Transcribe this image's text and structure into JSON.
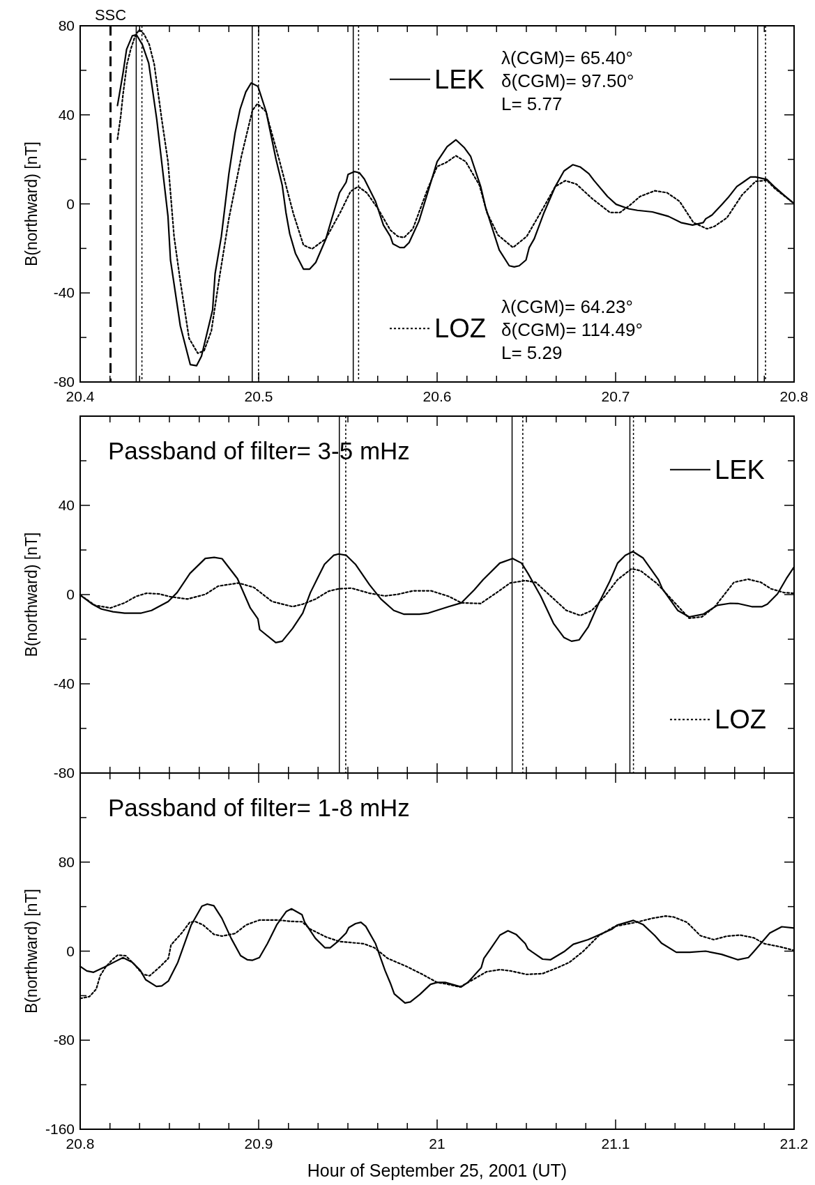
{
  "chart_data": [
    {
      "type": "line",
      "ylabel": "B(northward) [nT]",
      "xlim": [
        20.4,
        20.8
      ],
      "ylim": [
        -80,
        80
      ],
      "legend": "right",
      "xticks": [
        20.4,
        {
          "value": 20.4167,
          "label": null
        },
        {
          "value": 20.4333,
          "label": null
        },
        {
          "value": 20.45,
          "label": null
        },
        {
          "value": 20.4667,
          "label": null
        },
        {
          "value": 20.4833,
          "label": null
        },
        20.5,
        {
          "value": 20.5167,
          "label": null
        },
        {
          "value": 20.5333,
          "label": null
        },
        {
          "value": 20.55,
          "label": null
        },
        {
          "value": 20.5667,
          "label": null
        },
        {
          "value": 20.5833,
          "label": null
        },
        20.6,
        {
          "value": 20.6167,
          "label": null
        },
        {
          "value": 20.6333,
          "label": null
        },
        {
          "value": 20.65,
          "label": null
        },
        {
          "value": 20.6667,
          "label": null
        },
        {
          "value": 20.6833,
          "label": null
        },
        20.7,
        {
          "value": 20.7167,
          "label": null
        },
        {
          "value": 20.7333,
          "label": null
        },
        {
          "value": 20.75,
          "label": null
        },
        {
          "value": 20.7667,
          "label": null
        },
        {
          "value": 20.7833,
          "label": null
        },
        20.8
      ],
      "yticks": [
        -80,
        {
          "value": -60,
          "label": null
        },
        -40,
        {
          "value": -20,
          "label": null
        },
        0,
        {
          "value": 20,
          "label": null
        },
        40,
        {
          "value": 60,
          "label": null
        },
        80
      ],
      "series": [
        {
          "name": "LEK",
          "color": "#000000",
          "line_style": "solid",
          "x": [
            20.4209,
            20.424,
            20.426,
            20.4292,
            20.4315,
            20.4348,
            20.4384,
            20.4429,
            20.4492,
            20.4506,
            20.4561,
            20.4617,
            20.4652,
            20.468,
            20.4742,
            20.4756,
            20.4791,
            20.4833,
            20.4868,
            20.4896,
            20.4928,
            20.4958,
            20.4996,
            20.5042,
            20.5097,
            20.5132,
            20.5153,
            20.5174,
            20.5206,
            20.5251,
            20.5286,
            20.532,
            20.5376,
            20.5401,
            20.5453,
            20.549,
            20.5501,
            20.5536,
            20.5564,
            20.5592,
            20.5655,
            20.5699,
            20.5738,
            20.5752,
            20.5791,
            20.5815,
            20.5843,
            20.5898,
            20.5947,
            20.6,
            20.6056,
            20.6105,
            20.6153,
            20.6188,
            20.6244,
            20.6272,
            20.6348,
            20.6404,
            20.6432,
            20.646,
            20.6498,
            20.6516,
            20.6544,
            20.6599,
            20.6662,
            20.6711,
            20.676,
            20.6801,
            20.685,
            20.6878,
            20.6955,
            20.7003,
            20.7073,
            20.7122,
            20.7206,
            20.7247,
            20.7296,
            20.7366,
            20.7431,
            20.7491,
            20.7505,
            20.754,
            20.7596,
            20.763,
            20.7679,
            20.7721,
            20.7756,
            20.7784,
            20.7847,
            20.7895,
            20.7944,
            20.7993
          ],
          "values": [
            44.2,
            58.7,
            69.4,
            75.5,
            76,
            71.6,
            63.2,
            38,
            -5.6,
            -25.2,
            -54.8,
            -72.2,
            -72.7,
            -68.3,
            -47.6,
            -31.3,
            -14.6,
            13.4,
            31.9,
            42.5,
            50.3,
            54.3,
            52.8,
            41.4,
            20.1,
            8.4,
            -3.9,
            -13.4,
            -22.2,
            -29.3,
            -29.3,
            -26.3,
            -15.9,
            -9,
            5,
            9.7,
            13.2,
            14.5,
            14,
            11.2,
            1.1,
            -9.5,
            -14.6,
            -17.9,
            -19.6,
            -19.6,
            -17.4,
            -7.8,
            5,
            19,
            25.7,
            28.8,
            25.2,
            21.3,
            7.8,
            -1.7,
            -20.7,
            -27.8,
            -28.3,
            -27.8,
            -25.2,
            -19.6,
            -15.7,
            -3.9,
            7.8,
            14.8,
            17.6,
            16.6,
            13.6,
            10.6,
            3.3,
            -0.2,
            -2.2,
            -2.9,
            -3.6,
            -4.5,
            -5.6,
            -8.4,
            -9.5,
            -8.4,
            -6.7,
            -5,
            -0.2,
            2.8,
            7.8,
            10.1,
            12.1,
            12.1,
            11,
            7.3,
            3.9,
            0.6
          ]
        },
        {
          "name": "LOZ",
          "color": "#000000",
          "line_style": "dotted",
          "x": [
            20.4209,
            20.4227,
            20.424,
            20.4262,
            20.4283,
            20.4306,
            20.4331,
            20.4359,
            20.4387,
            20.4415,
            20.4457,
            20.4492,
            20.4526,
            20.4561,
            20.461,
            20.4659,
            20.4694,
            20.4735,
            20.4777,
            20.4833,
            20.4903,
            20.4965,
            20.4993,
            20.5042,
            20.5056,
            20.5118,
            20.5195,
            20.5251,
            20.5299,
            20.5376,
            20.546,
            20.5515,
            20.5557,
            20.5606,
            20.5669,
            20.5738,
            20.578,
            20.5815,
            20.5864,
            20.5947,
            20.6,
            20.6049,
            20.6105,
            20.616,
            20.6237,
            20.6279,
            20.6341,
            20.6425,
            20.6502,
            20.6592,
            20.6662,
            20.6718,
            20.678,
            20.6871,
            20.6969,
            20.7024,
            20.708,
            20.7136,
            20.722,
            20.7289,
            20.7359,
            20.7436,
            20.7512,
            20.7554,
            20.7624,
            20.7707,
            20.7784,
            20.7847,
            20.7895,
            20.7993
          ],
          "values": [
            29.1,
            39.2,
            49.2,
            62.7,
            69.4,
            75,
            78.3,
            76.1,
            71.6,
            62.7,
            38,
            19,
            -14.6,
            -34.7,
            -60.4,
            -67.1,
            -66,
            -57.1,
            -34.7,
            -6.7,
            21.3,
            42,
            45,
            41.4,
            36.9,
            19,
            -4.5,
            -18.5,
            -20.2,
            -15.7,
            -3.4,
            5.6,
            7.8,
            5,
            -2.2,
            -11.8,
            -14.6,
            -15.1,
            -11.2,
            6.7,
            16.8,
            18.5,
            21.6,
            19,
            8.4,
            -3.9,
            -14,
            -19.6,
            -14.6,
            -2.2,
            7.8,
            10.4,
            8.9,
            2.2,
            -3.9,
            -3.9,
            -0.6,
            3.3,
            5.9,
            5,
            1.1,
            -8.4,
            -11.2,
            -10.1,
            -6.2,
            3.9,
            10.1,
            10.6,
            6.7,
            0.6
          ]
        }
      ],
      "ref_lines": [
        {
          "axis": "x",
          "value": 20.417,
          "label": "SSC",
          "line_style": "dashed"
        },
        {
          "axis": "x",
          "value": 20.4314,
          "line_style": "solid"
        },
        {
          "axis": "x",
          "value": 20.4346,
          "line_style": "dotted"
        },
        {
          "axis": "x",
          "value": 20.4964,
          "line_style": "solid"
        },
        {
          "axis": "x",
          "value": 20.4999,
          "line_style": "dotted"
        },
        {
          "axis": "x",
          "value": 20.553,
          "line_style": "solid"
        },
        {
          "axis": "x",
          "value": 20.556,
          "line_style": "dotted"
        },
        {
          "axis": "x",
          "value": 20.7796,
          "line_style": "solid"
        },
        {
          "axis": "x",
          "value": 20.784,
          "line_style": "dotted"
        }
      ],
      "annotations": [
        "λ(CGM)= 65.40°",
        "δ(CGM)= 97.50°",
        "L= 5.77",
        "λ(CGM)= 64.23°",
        "δ(CGM)= 114.49°",
        "L= 5.29"
      ]
    },
    {
      "type": "line",
      "title": "Passband of filter= 3-5 mHz",
      "ylabel": "B(northward) [nT]",
      "xlim": [
        20.8,
        21.2
      ],
      "ylim": [
        -80,
        80
      ],
      "legend": "right",
      "tick_labels": "y",
      "xticks": [
        20.8,
        {
          "value": 20.8167,
          "label": null
        },
        {
          "value": 20.8333,
          "label": null
        },
        {
          "value": 20.85,
          "label": null
        },
        {
          "value": 20.8667,
          "label": null
        },
        {
          "value": 20.8833,
          "label": null
        },
        20.9,
        {
          "value": 20.9167,
          "label": null
        },
        {
          "value": 20.9333,
          "label": null
        },
        {
          "value": 20.95,
          "label": null
        },
        {
          "value": 20.9667,
          "label": null
        },
        {
          "value": 20.9833,
          "label": null
        },
        21,
        {
          "value": 21.0167,
          "label": null
        },
        {
          "value": 21.0333,
          "label": null
        },
        {
          "value": 21.05,
          "label": null
        },
        {
          "value": 21.0667,
          "label": null
        },
        {
          "value": 21.0833,
          "label": null
        },
        21.1,
        {
          "value": 21.1167,
          "label": null
        },
        {
          "value": 21.1333,
          "label": null
        },
        {
          "value": 21.15,
          "label": null
        },
        {
          "value": 21.1667,
          "label": null
        },
        {
          "value": 21.1833,
          "label": null
        },
        21.2
      ],
      "yticks": [
        -80,
        {
          "value": -60,
          "label": null
        },
        -40,
        {
          "value": -20,
          "label": null
        },
        0,
        {
          "value": 20,
          "label": null
        },
        40,
        {
          "value": 60,
          "label": null
        },
        {
          "value": 80,
          "label": null
        }
      ],
      "series": [
        {
          "name": "LEK",
          "color": "#000000",
          "line_style": "solid",
          "x": [
            20.8,
            20.8069,
            20.8119,
            20.8184,
            20.8249,
            20.8342,
            20.84,
            20.8493,
            20.8543,
            20.8615,
            20.8701,
            20.8751,
            20.8795,
            20.8881,
            20.8953,
            20.8996,
            20.9006,
            20.9096,
            20.9132,
            20.919,
            20.9247,
            20.929,
            20.9326,
            20.9369,
            20.942,
            20.9448,
            20.9491,
            20.9542,
            20.9621,
            20.9685,
            20.9757,
            20.9815,
            20.9901,
            20.9951,
            21.0065,
            21.0136,
            21.0208,
            21.0258,
            21.0351,
            21.0423,
            21.0473,
            21.0509,
            21.0581,
            21.0652,
            21.071,
            21.0753,
            21.0796,
            21.0846,
            21.0903,
            21.0968,
            21.1011,
            21.1054,
            21.1097,
            21.1154,
            21.124,
            21.1262,
            21.1348,
            21.1412,
            21.1491,
            21.157,
            21.1642,
            21.1685,
            21.1763,
            21.1821,
            21.185,
            21.1907,
            21.1957,
            21.2
          ],
          "values": [
            -0.2,
            -4.3,
            -6.5,
            -7.7,
            -8.3,
            -8.3,
            -7.1,
            -3.1,
            0.9,
            9.5,
            16.2,
            16.7,
            16.1,
            7.2,
            -6,
            -10.9,
            -15.7,
            -21.5,
            -20.9,
            -15.2,
            -8.3,
            0.9,
            6.7,
            13.6,
            17.6,
            18.2,
            17.6,
            13.6,
            4.4,
            -2,
            -7.1,
            -8.8,
            -8.8,
            -8.3,
            -5.4,
            -3.7,
            2.1,
            6.7,
            14.1,
            16.2,
            14.1,
            9.5,
            -0.8,
            -12.9,
            -19.2,
            -20.9,
            -20.3,
            -14.6,
            -4.3,
            6.1,
            14.1,
            17.6,
            19.3,
            16.4,
            6.7,
            2.6,
            -7.1,
            -10,
            -8.8,
            -4.8,
            -3.9,
            -4,
            -5.4,
            -5.4,
            -4.3,
            0.3,
            7.2,
            12.4
          ]
        },
        {
          "name": "LOZ",
          "color": "#000000",
          "line_style": "dotted",
          "x": [
            20.8,
            20.8083,
            20.817,
            20.8249,
            20.8313,
            20.8371,
            20.8443,
            20.8507,
            20.8601,
            20.8701,
            20.8773,
            20.8888,
            20.8974,
            20.9075,
            20.919,
            20.9247,
            20.9319,
            20.9391,
            20.9448,
            20.952,
            20.9621,
            20.9707,
            20.9779,
            20.9865,
            20.9966,
            21.0065,
            21.0136,
            21.0244,
            21.0323,
            21.0409,
            21.0495,
            21.0552,
            21.0638,
            21.0724,
            21.0803,
            21.0867,
            21.0939,
            21.1011,
            21.109,
            21.114,
            21.1233,
            21.1312,
            21.1412,
            21.1484,
            21.1556,
            21.1663,
            21.1742,
            21.1814,
            21.1871,
            21.1943,
            21.2
          ],
          "values": [
            -0.2,
            -4.8,
            -6,
            -3.7,
            -0.8,
            0.6,
            0.3,
            -1,
            -2,
            0.1,
            3.8,
            5.2,
            3.2,
            -3.1,
            -5.4,
            -4.3,
            -2,
            1.5,
            2.6,
            2.9,
            0.6,
            -0.6,
            0.1,
            1.7,
            1.7,
            -0.8,
            -3.7,
            -4,
            0.3,
            5.2,
            6.3,
            5.5,
            -0.8,
            -7.1,
            -9.4,
            -7.1,
            -0.8,
            6.7,
            11.6,
            10.7,
            4.9,
            -2,
            -10.6,
            -10,
            -5.4,
            5.5,
            6.9,
            5.5,
            2.6,
            0.9,
            0.6
          ]
        }
      ],
      "ref_lines": [
        {
          "axis": "x",
          "value": 20.9452,
          "line_style": "solid"
        },
        {
          "axis": "x",
          "value": 20.9488,
          "line_style": "dotted"
        },
        {
          "axis": "x",
          "value": 21.042,
          "line_style": "solid"
        },
        {
          "axis": "x",
          "value": 21.048,
          "line_style": "dotted"
        },
        {
          "axis": "x",
          "value": 21.108,
          "line_style": "solid"
        },
        {
          "axis": "x",
          "value": 21.11,
          "line_style": "dotted"
        }
      ]
    },
    {
      "type": "line",
      "title": "Passband of filter= 1-8 mHz",
      "ylabel": "B(northward) [nT]",
      "xlabel": "Hour of September 25, 2001 (UT)",
      "xlim": [
        20.8,
        21.2
      ],
      "ylim": [
        -160,
        160
      ],
      "xticks": [
        20.8,
        {
          "value": 20.8167,
          "label": null
        },
        {
          "value": 20.8333,
          "label": null
        },
        {
          "value": 20.85,
          "label": null
        },
        {
          "value": 20.8667,
          "label": null
        },
        {
          "value": 20.8833,
          "label": null
        },
        20.9,
        {
          "value": 20.9167,
          "label": null
        },
        {
          "value": 20.9333,
          "label": null
        },
        {
          "value": 20.95,
          "label": null
        },
        {
          "value": 20.9667,
          "label": null
        },
        {
          "value": 20.9833,
          "label": null
        },
        21,
        {
          "value": 21.0167,
          "label": null
        },
        {
          "value": 21.0333,
          "label": null
        },
        {
          "value": 21.05,
          "label": null
        },
        {
          "value": 21.0667,
          "label": null
        },
        {
          "value": 21.0833,
          "label": null
        },
        21.1,
        {
          "value": 21.1167,
          "label": null
        },
        {
          "value": 21.1333,
          "label": null
        },
        {
          "value": 21.15,
          "label": null
        },
        {
          "value": 21.1667,
          "label": null
        },
        {
          "value": 21.1833,
          "label": null
        },
        21.2
      ],
      "yticks": [
        -160,
        {
          "value": -120,
          "label": null
        },
        -80,
        {
          "value": -40,
          "label": null
        },
        0,
        {
          "value": 40,
          "label": null
        },
        80,
        {
          "value": 120,
          "label": null
        },
        {
          "value": 160,
          "label": null
        }
      ],
      "series": [
        {
          "color": "#000000",
          "line_style": "solid",
          "x": [
            20.8,
            20.8037,
            20.8075,
            20.8135,
            20.8187,
            20.824,
            20.8292,
            20.8337,
            20.8367,
            20.8427,
            20.8457,
            20.8494,
            20.8547,
            20.8622,
            20.8682,
            20.8712,
            20.8749,
            20.8794,
            20.8846,
            20.8899,
            20.8936,
            20.8966,
            20.9004,
            20.9049,
            20.9101,
            20.9154,
            20.9184,
            20.9243,
            20.9258,
            20.9318,
            20.9371,
            20.9401,
            20.9438,
            20.949,
            20.9505,
            20.9543,
            20.9573,
            20.96,
            20.9655,
            20.9708,
            20.9738,
            20.976,
            20.982,
            20.985,
            20.9903,
            20.9963,
            21,
            21.0045,
            21.0135,
            21.0172,
            21.0247,
            21.0262,
            21.0299,
            21.0352,
            21.0397,
            21.0442,
            21.0494,
            21.0509,
            21.0591,
            21.0636,
            21.0711,
            21.0763,
            21.0846,
            21.0891,
            21.0981,
            21.101,
            21.11,
            21.1153,
            21.122,
            21.1257,
            21.134,
            21.1415,
            21.1504,
            21.1594,
            21.1684,
            21.1744,
            21.1774,
            21.1864,
            21.1931,
            21.2
          ],
          "values": [
            -13.7,
            -17.8,
            -19,
            -14.4,
            -10.1,
            -5.8,
            -10.1,
            -17.3,
            -25.7,
            -31.7,
            -31.2,
            -26.9,
            -10.1,
            23.5,
            40.4,
            42.3,
            40.8,
            29.5,
            11.5,
            -4.1,
            -7.7,
            -8.2,
            -5.8,
            6.7,
            23.5,
            35.5,
            38,
            32.7,
            25.9,
            11.5,
            3.1,
            3.1,
            7.9,
            16.3,
            21.1,
            24.7,
            25.9,
            22.3,
            6.7,
            -17.3,
            -28.8,
            -38.4,
            -46.6,
            -45.6,
            -38.9,
            -29.8,
            -28.1,
            -28.1,
            -32.2,
            -28.1,
            -14.9,
            -6.5,
            1.9,
            14.4,
            18.3,
            15.1,
            6.7,
            1.9,
            -7.2,
            -7.7,
            -0.5,
            6.2,
            10.3,
            13.5,
            19.9,
            23.5,
            27.6,
            24,
            13.9,
            7.2,
            -1,
            -1,
            0,
            -2.9,
            -7.7,
            -5.8,
            -0.5,
            16.3,
            21.9,
            20.7
          ]
        },
        {
          "color": "#000000",
          "line_style": "dotted",
          "x": [
            20.8,
            20.8052,
            20.809,
            20.8112,
            20.8142,
            20.818,
            20.821,
            20.8255,
            20.83,
            20.8352,
            20.839,
            20.8449,
            20.8494,
            20.8509,
            20.8569,
            20.8614,
            20.8644,
            20.8689,
            20.8749,
            20.8794,
            20.8869,
            20.8929,
            20.9004,
            20.9109,
            20.9184,
            20.9243,
            20.9288,
            20.9378,
            20.9453,
            20.9588,
            20.9648,
            20.9723,
            20.9828,
            20.9918,
            21,
            21.0045,
            21.0127,
            21.0187,
            21.0277,
            21.0352,
            21.0412,
            21.0501,
            21.0591,
            21.0681,
            21.0741,
            21.0816,
            21.0906,
            21.0996,
            21.1115,
            21.1205,
            21.128,
            21.1325,
            21.14,
            21.1475,
            21.155,
            21.1624,
            21.1699,
            21.1774,
            21.1834,
            21.1924,
            21.2
          ],
          "values": [
            -42.5,
            -40.8,
            -34.1,
            -22.1,
            -14.4,
            -7.7,
            -3.6,
            -4.1,
            -11.3,
            -20.9,
            -22.1,
            -13.7,
            -6.5,
            5.5,
            16.3,
            25.9,
            26.7,
            23.5,
            15.1,
            13.5,
            15.9,
            23.5,
            27.9,
            27.9,
            26.7,
            26.4,
            19.9,
            12.7,
            8.6,
            6.7,
            3.1,
            -6.5,
            -13.7,
            -20.9,
            -28.1,
            -29.3,
            -32.2,
            -26.9,
            -18.5,
            -16.6,
            -17.8,
            -20.9,
            -20.2,
            -14.4,
            -10.1,
            -0.5,
            13.9,
            22.3,
            25.9,
            29.5,
            31.5,
            30.7,
            25.9,
            13.9,
            10.3,
            13.5,
            14.4,
            12,
            6.7,
            3.8,
            0.7
          ]
        }
      ]
    }
  ]
}
